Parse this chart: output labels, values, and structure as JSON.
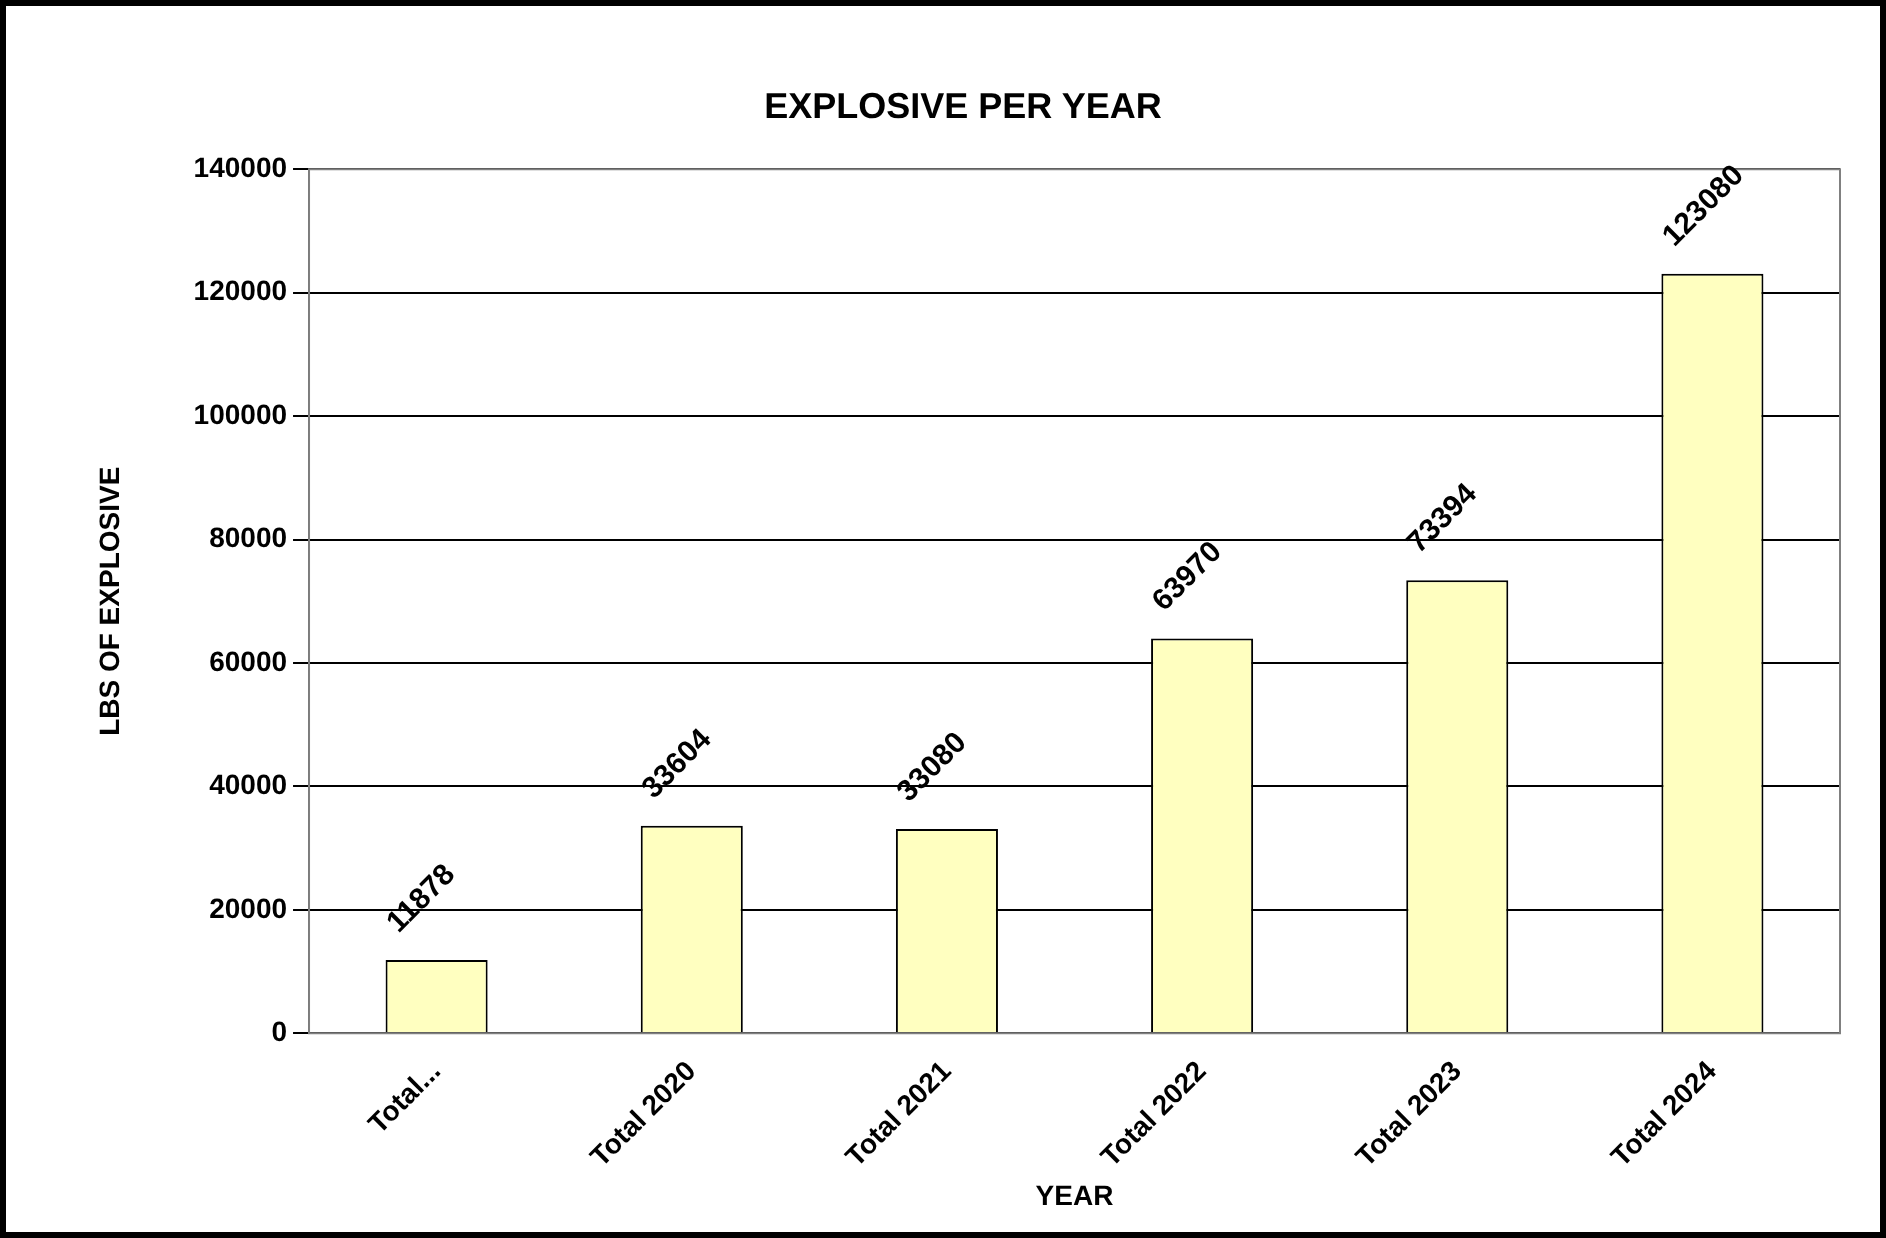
{
  "chart_data": {
    "type": "bar",
    "title": "EXPLOSIVE PER YEAR",
    "xlabel": "YEAR",
    "ylabel": "LBS OF EXPLOSIVE",
    "categories": [
      "Total...",
      "Total 2020",
      "Total 2021",
      "Total 2022",
      "Total 2023",
      "Total 2024"
    ],
    "values": [
      11878,
      33604,
      33080,
      63970,
      73394,
      123080
    ],
    "color": "#ffffc0",
    "ylim": [
      0,
      140000
    ],
    "yticks": [
      0,
      20000,
      40000,
      60000,
      80000,
      100000,
      120000,
      140000
    ],
    "grid": "y",
    "legend": false,
    "data_labels": true
  }
}
